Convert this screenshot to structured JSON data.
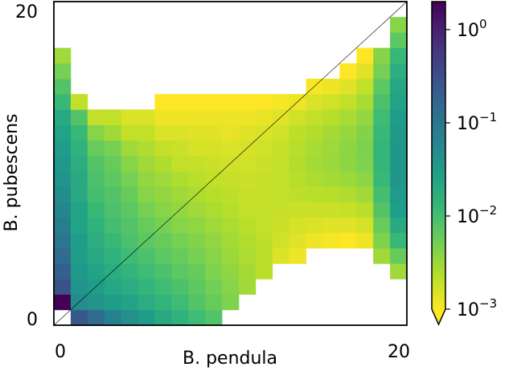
{
  "chart_data": {
    "type": "heatmap",
    "title": "",
    "xlabel": "B. pendula",
    "ylabel": "B. pubescens",
    "x_tick_labels": [
      "0",
      "20"
    ],
    "y_tick_labels": [
      "0",
      "20"
    ],
    "xlim": [
      0,
      20
    ],
    "ylim": [
      0,
      20
    ],
    "grid": false,
    "diagonal_line": true,
    "colorscale": {
      "name": "viridis_r",
      "scale": "log",
      "min": 0.001,
      "max": 2.0,
      "extend": "min",
      "ticks": [
        {
          "value": 0.001,
          "base": "10",
          "exp": "−3"
        },
        {
          "value": 0.01,
          "base": "10",
          "exp": "−2"
        },
        {
          "value": 0.1,
          "base": "10",
          "exp": "−1"
        },
        {
          "value": 1,
          "base": "10",
          "exp": "0"
        }
      ]
    },
    "columns": [
      {
        "x": 0,
        "y_values": {
          "1": 2.0,
          "2": 0.3,
          "3": 0.2,
          "4": 0.14,
          "5": 0.1,
          "6": 0.08,
          "7": 0.06,
          "8": 0.05,
          "9": 0.04,
          "10": 0.035,
          "11": 0.03,
          "12": 0.025,
          "13": 0.02,
          "14": 0.012,
          "15": 0.008,
          "16": 0.005,
          "17": 0.003
        }
      },
      {
        "x": 1,
        "y_values": {
          "0": 0.25,
          "1": 0.05,
          "2": 0.04,
          "3": 0.035,
          "4": 0.03,
          "5": 0.03,
          "6": 0.025,
          "7": 0.025,
          "8": 0.02,
          "9": 0.02,
          "10": 0.018,
          "11": 0.015,
          "12": 0.012,
          "13": 0.008,
          "14": 0.002
        }
      },
      {
        "x": 2,
        "y_values": {
          "0": 0.14,
          "1": 0.04,
          "2": 0.03,
          "3": 0.025,
          "4": 0.02,
          "5": 0.018,
          "6": 0.015,
          "7": 0.012,
          "8": 0.01,
          "9": 0.009,
          "10": 0.008,
          "11": 0.006,
          "12": 0.004,
          "13": 0.002
        }
      },
      {
        "x": 3,
        "y_values": {
          "0": 0.07,
          "1": 0.03,
          "2": 0.022,
          "3": 0.018,
          "4": 0.015,
          "5": 0.012,
          "6": 0.01,
          "7": 0.009,
          "8": 0.008,
          "9": 0.007,
          "10": 0.006,
          "11": 0.005,
          "12": 0.003,
          "13": 0.002
        }
      },
      {
        "x": 4,
        "y_values": {
          "0": 0.045,
          "1": 0.025,
          "2": 0.018,
          "3": 0.014,
          "4": 0.011,
          "5": 0.009,
          "6": 0.008,
          "7": 0.007,
          "8": 0.006,
          "9": 0.005,
          "10": 0.004,
          "11": 0.003,
          "12": 0.002,
          "13": 0.0015
        }
      },
      {
        "x": 5,
        "y_values": {
          "0": 0.03,
          "1": 0.018,
          "2": 0.014,
          "3": 0.011,
          "4": 0.009,
          "5": 0.007,
          "6": 0.006,
          "7": 0.005,
          "8": 0.004,
          "9": 0.0035,
          "10": 0.003,
          "11": 0.0025,
          "12": 0.002,
          "13": 0.0015
        }
      },
      {
        "x": 6,
        "y_values": {
          "0": 0.02,
          "1": 0.014,
          "2": 0.011,
          "3": 0.009,
          "4": 0.007,
          "5": 0.006,
          "6": 0.005,
          "7": 0.004,
          "8": 0.0035,
          "9": 0.003,
          "10": 0.0025,
          "11": 0.002,
          "12": 0.0015,
          "13": 0.0012,
          "14": 0.001
        }
      },
      {
        "x": 7,
        "y_values": {
          "0": 0.015,
          "1": 0.011,
          "2": 0.009,
          "3": 0.007,
          "4": 0.006,
          "5": 0.005,
          "6": 0.004,
          "7": 0.0035,
          "8": 0.003,
          "9": 0.0025,
          "10": 0.002,
          "11": 0.0018,
          "12": 0.0015,
          "13": 0.0012,
          "14": 0.001
        }
      },
      {
        "x": 8,
        "y_values": {
          "0": 0.011,
          "1": 0.008,
          "2": 0.007,
          "3": 0.006,
          "4": 0.005,
          "5": 0.0042,
          "6": 0.0036,
          "7": 0.003,
          "8": 0.0026,
          "9": 0.0022,
          "10": 0.0019,
          "11": 0.0016,
          "12": 0.0014,
          "13": 0.0012,
          "14": 0.001
        }
      },
      {
        "x": 9,
        "y_values": {
          "0": 0.008,
          "1": 0.006,
          "2": 0.0052,
          "3": 0.0045,
          "4": 0.004,
          "5": 0.0035,
          "6": 0.003,
          "7": 0.0026,
          "8": 0.0023,
          "9": 0.002,
          "10": 0.0018,
          "11": 0.0016,
          "12": 0.0014,
          "13": 0.0012,
          "14": 0.001
        }
      },
      {
        "x": 10,
        "y_values": {
          "1": 0.0045,
          "2": 0.004,
          "3": 0.0036,
          "4": 0.0032,
          "5": 0.0029,
          "6": 0.0026,
          "7": 0.0023,
          "8": 0.0021,
          "9": 0.0019,
          "10": 0.0017,
          "11": 0.0015,
          "12": 0.0013,
          "13": 0.0012,
          "14": 0.001
        }
      },
      {
        "x": 11,
        "y_values": {
          "2": 0.003,
          "3": 0.0028,
          "4": 0.0026,
          "5": 0.0024,
          "6": 0.0022,
          "7": 0.002,
          "8": 0.0019,
          "9": 0.0018,
          "10": 0.0017,
          "11": 0.0016,
          "12": 0.0014,
          "13": 0.0012,
          "14": 0.001
        }
      },
      {
        "x": 12,
        "y_values": {
          "3": 0.0022,
          "4": 0.0022,
          "5": 0.0021,
          "6": 0.002,
          "7": 0.002,
          "8": 0.0019,
          "9": 0.0019,
          "10": 0.0018,
          "11": 0.0017,
          "12": 0.0015,
          "13": 0.0013,
          "14": 0.001
        }
      },
      {
        "x": 13,
        "y_values": {
          "4": 0.0015,
          "5": 0.0017,
          "6": 0.0018,
          "7": 0.0019,
          "8": 0.002,
          "9": 0.002,
          "10": 0.002,
          "11": 0.0019,
          "12": 0.0017,
          "13": 0.0014,
          "14": 0.0011
        }
      },
      {
        "x": 14,
        "y_values": {
          "4": 0.0012,
          "5": 0.0014,
          "6": 0.0016,
          "7": 0.0018,
          "8": 0.0021,
          "9": 0.0023,
          "10": 0.0024,
          "11": 0.0023,
          "12": 0.0021,
          "13": 0.0017,
          "14": 0.0012
        }
      },
      {
        "x": 15,
        "y_values": {
          "5": 0.0012,
          "6": 0.0015,
          "7": 0.0018,
          "8": 0.0022,
          "9": 0.0026,
          "10": 0.0028,
          "11": 0.0027,
          "12": 0.0024,
          "13": 0.002,
          "14": 0.0015,
          "15": 0.0011
        }
      },
      {
        "x": 16,
        "y_values": {
          "5": 0.0011,
          "6": 0.0014,
          "7": 0.0018,
          "8": 0.0023,
          "9": 0.0028,
          "10": 0.0032,
          "11": 0.0031,
          "12": 0.0028,
          "13": 0.0023,
          "14": 0.0017,
          "15": 0.0012
        }
      },
      {
        "x": 17,
        "y_values": {
          "5": 0.001,
          "6": 0.0014,
          "7": 0.0019,
          "8": 0.0025,
          "9": 0.0032,
          "10": 0.0037,
          "11": 0.0037,
          "12": 0.0033,
          "13": 0.0027,
          "14": 0.002,
          "15": 0.0014,
          "16": 0.001
        }
      },
      {
        "x": 18,
        "y_values": {
          "5": 0.0012,
          "6": 0.0016,
          "7": 0.0022,
          "8": 0.003,
          "9": 0.0038,
          "10": 0.0045,
          "11": 0.0046,
          "12": 0.0042,
          "13": 0.0035,
          "14": 0.0027,
          "15": 0.002,
          "16": 0.0014,
          "17": 0.001
        }
      },
      {
        "x": 19,
        "y_values": {
          "4": 0.003,
          "5": 0.0045,
          "6": 0.006,
          "7": 0.008,
          "8": 0.01,
          "9": 0.012,
          "10": 0.013,
          "11": 0.013,
          "12": 0.012,
          "13": 0.011,
          "14": 0.009,
          "15": 0.007,
          "16": 0.005,
          "17": 0.004
        }
      },
      {
        "x": 20,
        "y_values": {
          "3": 0.003,
          "4": 0.006,
          "5": 0.012,
          "6": 0.02,
          "7": 0.028,
          "8": 0.033,
          "9": 0.036,
          "10": 0.037,
          "11": 0.036,
          "12": 0.034,
          "13": 0.03,
          "14": 0.026,
          "15": 0.022,
          "16": 0.017,
          "17": 0.012,
          "18": 0.007,
          "19": 0.004
        }
      }
    ]
  }
}
